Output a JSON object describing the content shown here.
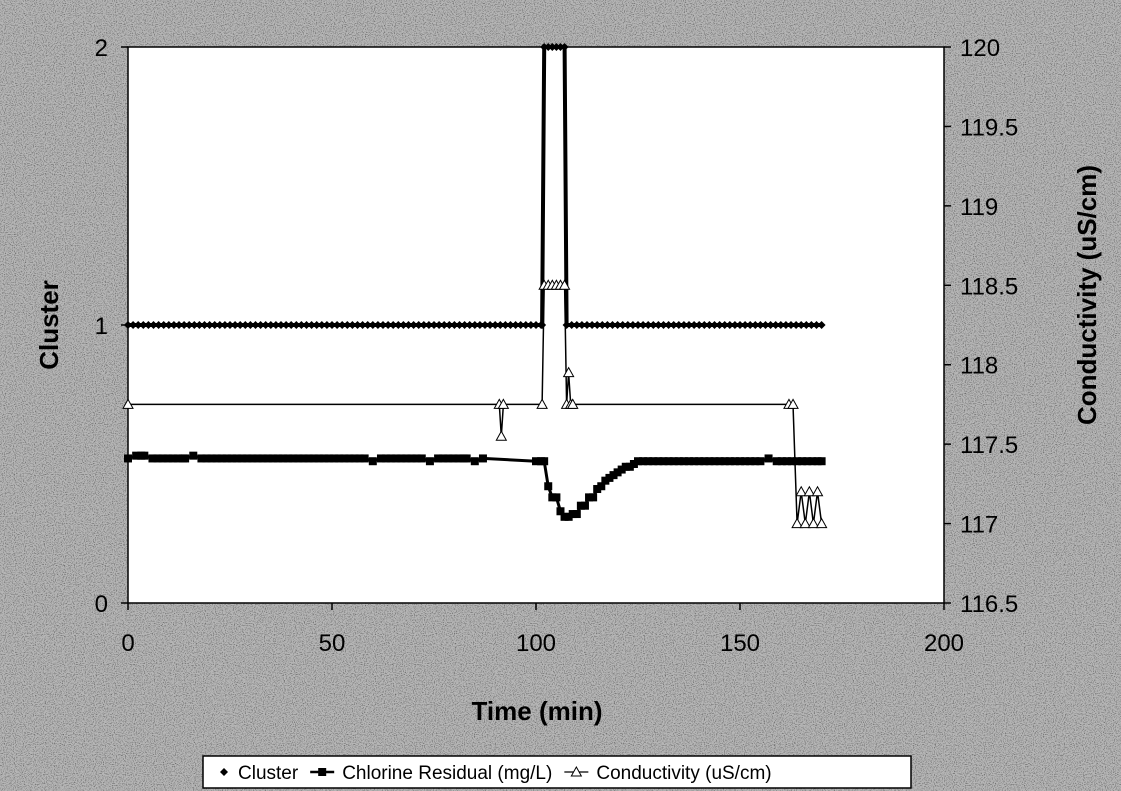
{
  "chart_data": {
    "type": "line",
    "xlabel": "Time (min)",
    "ylabel_left": "Cluster",
    "ylabel_right": "Conductivity (uS/cm)",
    "xlim": [
      0,
      200
    ],
    "ylim_left": [
      0,
      2
    ],
    "ylim_right": [
      116.5,
      120
    ],
    "x_ticks": [
      "0",
      "50",
      "100",
      "150",
      "200"
    ],
    "y_left_ticks": [
      "0",
      "1",
      "2"
    ],
    "y_right_ticks": [
      "116.5",
      "117",
      "117.5",
      "118",
      "118.5",
      "119",
      "119.5",
      "120"
    ],
    "grid": false,
    "legend_position": "bottom",
    "series": [
      {
        "name": "Cluster",
        "axis": "left",
        "marker": "diamond",
        "x": [
          0,
          101.5,
          102,
          103,
          104,
          105,
          106,
          107,
          107.5,
          170
        ],
        "y": [
          1,
          1,
          2,
          2,
          2,
          2,
          2,
          2,
          1,
          1
        ]
      },
      {
        "name": "Chlorine Residual (mg/L)",
        "axis": "left",
        "marker": "square",
        "x": [
          0,
          2,
          4,
          6,
          14,
          16,
          18,
          58,
          60,
          62,
          72,
          74,
          76,
          83,
          85,
          87,
          100,
          102,
          103,
          104,
          105,
          106,
          107,
          108,
          109,
          110,
          111,
          112,
          113,
          114,
          115,
          116,
          117,
          118,
          119,
          120,
          121,
          122,
          123,
          124,
          125,
          155,
          157,
          159,
          170
        ],
        "y": [
          0.52,
          0.53,
          0.53,
          0.52,
          0.52,
          0.53,
          0.52,
          0.52,
          0.51,
          0.52,
          0.52,
          0.51,
          0.52,
          0.52,
          0.51,
          0.52,
          0.51,
          0.51,
          0.42,
          0.38,
          0.38,
          0.33,
          0.31,
          0.31,
          0.32,
          0.32,
          0.35,
          0.35,
          0.38,
          0.38,
          0.41,
          0.42,
          0.44,
          0.45,
          0.46,
          0.47,
          0.48,
          0.49,
          0.49,
          0.5,
          0.51,
          0.51,
          0.52,
          0.51,
          0.51
        ]
      },
      {
        "name": "Conductivity (uS/cm)",
        "axis": "right",
        "marker": "triangle",
        "x": [
          0,
          91,
          91.5,
          92,
          101.5,
          102,
          103,
          104,
          105,
          106,
          107,
          107.5,
          108,
          108.5,
          109,
          162,
          163,
          164,
          165,
          166,
          167,
          168,
          169,
          170
        ],
        "y": [
          117.75,
          117.75,
          117.55,
          117.75,
          117.75,
          118.5,
          118.5,
          118.5,
          118.5,
          118.5,
          118.5,
          117.75,
          117.95,
          117.75,
          117.75,
          117.75,
          117.75,
          117,
          117.2,
          117,
          117.2,
          117,
          117.2,
          117
        ]
      }
    ]
  }
}
